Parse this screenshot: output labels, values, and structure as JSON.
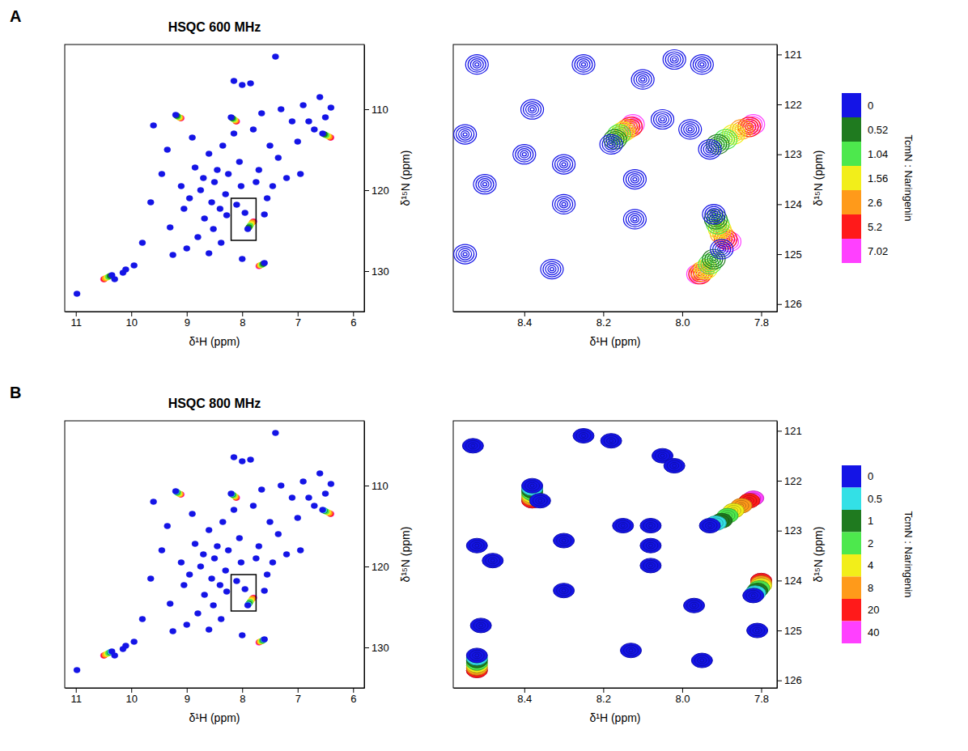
{
  "chart_data": [
    {
      "type": "contour",
      "label": "A",
      "title": "HSQC 600 MHz",
      "x_label": "δ¹H (ppm)",
      "y_label": "δ¹⁵N (ppm)",
      "xlim": [
        11.2,
        5.8
      ],
      "ylim": [
        102,
        135
      ],
      "xticks": [
        11,
        10,
        9,
        8,
        7,
        6
      ],
      "yticks": [
        110,
        120,
        130
      ],
      "marker": "filled",
      "inset": {
        "x": [
          8.2,
          7.75
        ],
        "y": [
          121,
          126.2
        ]
      },
      "series": [
        {
          "name": "0",
          "color": "#1414e6",
          "x": [
            10.98,
            10.35,
            10.3,
            10.15,
            10.1,
            9.95,
            9.8,
            9.6,
            9.45,
            9.35,
            9.3,
            9.25,
            9.2,
            9.1,
            9.05,
            8.95,
            8.9,
            8.85,
            8.8,
            8.75,
            8.7,
            8.68,
            8.6,
            8.55,
            8.52,
            8.5,
            8.45,
            8.4,
            8.38,
            8.35,
            8.3,
            8.28,
            8.25,
            8.2,
            8.15,
            8.1,
            8.05,
            8.02,
            8.0,
            7.95,
            7.9,
            7.85,
            7.8,
            7.75,
            7.7,
            7.65,
            7.6,
            7.55,
            7.5,
            7.45,
            7.4,
            7.35,
            7.3,
            7.2,
            7.1,
            7.0,
            6.95,
            6.9,
            6.8,
            6.7,
            6.6,
            6.55,
            6.5,
            6.4,
            9.0,
            8.0,
            8.6,
            9.65,
            8.15,
            7.6
          ],
          "y": [
            132.8,
            130.5,
            131.0,
            130.2,
            129.8,
            129.3,
            126.5,
            112.0,
            118.0,
            115.0,
            124.6,
            128.0,
            110.7,
            119.5,
            122.3,
            121.0,
            113.5,
            117.2,
            125.8,
            120.0,
            118.5,
            123.5,
            115.5,
            121.5,
            124.8,
            119.0,
            117.5,
            122.3,
            126.5,
            114.5,
            120.5,
            123.1,
            118.0,
            111.0,
            106.5,
            121.8,
            116.5,
            119.5,
            107.0,
            122.8,
            124.8,
            106.8,
            112.5,
            119.0,
            117.5,
            110.5,
            129.0,
            121.0,
            114.5,
            119.5,
            103.5,
            116.0,
            110.0,
            118.5,
            111.5,
            114.0,
            118.0,
            109.5,
            111.5,
            112.5,
            108.5,
            113.0,
            111.0,
            109.8,
            127.2,
            128.5,
            127.8,
            121.5,
            113.0,
            123.0
          ]
        },
        {
          "name": "0.52",
          "color": "#1f7a1f",
          "x": [
            6.52,
            10.38,
            7.88,
            8.18,
            7.62,
            9.18
          ],
          "y": [
            113.1,
            130.6,
            124.6,
            111.1,
            129.1,
            110.8
          ]
        },
        {
          "name": "1.04",
          "color": "#4de84d",
          "x": [
            6.49,
            10.41,
            7.86,
            8.16,
            7.64,
            9.16
          ],
          "y": [
            113.2,
            130.7,
            124.4,
            111.2,
            129.2,
            110.9
          ]
        },
        {
          "name": "1.56",
          "color": "#f2ee1a",
          "x": [
            6.46,
            10.44,
            7.84,
            8.14,
            7.66,
            9.14
          ],
          "y": [
            113.3,
            130.8,
            124.2,
            111.3,
            129.25,
            111.0
          ]
        },
        {
          "name": "2.6",
          "color": "#ff9a1a",
          "x": [
            6.43,
            10.47,
            7.82,
            8.12,
            7.68,
            9.12
          ],
          "y": [
            113.4,
            130.9,
            124.0,
            111.4,
            129.3,
            111.05
          ]
        },
        {
          "name": "5.2",
          "color": "#ff1a1a",
          "x": [
            6.41,
            10.49,
            7.8,
            8.11,
            7.69,
            9.11
          ],
          "y": [
            113.5,
            131.0,
            123.9,
            111.5,
            129.35,
            111.1
          ]
        },
        {
          "name": "7.02",
          "color": "#ff40ff",
          "x": [
            6.4,
            10.5,
            7.79,
            8.1,
            7.7,
            9.1
          ],
          "y": [
            113.5,
            131.0,
            123.85,
            111.5,
            129.4,
            111.1
          ]
        }
      ]
    },
    {
      "type": "contour",
      "x_label": "δ¹H (ppm)",
      "y_label": "δ¹⁵N (ppm)",
      "xlim": [
        8.58,
        7.76
      ],
      "ylim": [
        120.8,
        126.15
      ],
      "xticks": [
        8.4,
        8.2,
        {
          "value": 8,
          "label": "8.0"
        },
        7.8
      ],
      "yticks": [
        121,
        122,
        123,
        124,
        125,
        126
      ],
      "marker": "contour-lines",
      "legend": "right",
      "legend_title": "TcmN : Naringenin",
      "series": [
        {
          "name": "0",
          "color": "#1414e6",
          "x": [
            8.52,
            8.55,
            8.38,
            8.4,
            8.3,
            8.3,
            8.25,
            8.18,
            8.12,
            8.12,
            8.1,
            8.05,
            8.02,
            7.98,
            7.93,
            7.9,
            7.92,
            8.55,
            8.33,
            7.95,
            8.5
          ],
          "y": [
            121.2,
            122.6,
            122.1,
            123.0,
            123.2,
            124.0,
            121.2,
            122.8,
            123.5,
            124.3,
            121.5,
            122.3,
            121.1,
            122.5,
            122.9,
            124.9,
            124.2,
            125.0,
            125.3,
            121.2,
            123.6
          ]
        },
        {
          "name": "0.52",
          "color": "#1f7a1f",
          "x": [
            7.91,
            7.915,
            7.92,
            8.17
          ],
          "y": [
            122.8,
            124.3,
            125.1,
            122.7
          ]
        },
        {
          "name": "1.04",
          "color": "#4de84d",
          "x": [
            7.89,
            7.91,
            7.93,
            8.16
          ],
          "y": [
            122.7,
            124.4,
            125.2,
            122.6
          ]
        },
        {
          "name": "1.56",
          "color": "#f2ee1a",
          "x": [
            7.87,
            7.905,
            7.94,
            8.15
          ],
          "y": [
            122.6,
            124.5,
            125.3,
            122.55
          ]
        },
        {
          "name": "2.6",
          "color": "#ff9a1a",
          "x": [
            7.85,
            7.9,
            7.95,
            8.14
          ],
          "y": [
            122.5,
            124.6,
            125.35,
            122.5
          ]
        },
        {
          "name": "5.2",
          "color": "#ff1a1a",
          "x": [
            7.83,
            7.89,
            7.955,
            8.13
          ],
          "y": [
            122.45,
            124.7,
            125.4,
            122.45
          ]
        },
        {
          "name": "7.02",
          "color": "#ff40ff",
          "x": [
            7.82,
            7.88,
            7.96,
            8.125
          ],
          "y": [
            122.4,
            124.75,
            125.4,
            122.4
          ]
        }
      ]
    },
    {
      "type": "contour",
      "label": "B",
      "title": "HSQC 800 MHz",
      "x_label": "δ¹H (ppm)",
      "y_label": "δ¹⁵N (ppm)",
      "xlim": [
        11.2,
        5.8
      ],
      "ylim": [
        102,
        135
      ],
      "xticks": [
        11,
        10,
        9,
        8,
        7,
        6
      ],
      "yticks": [
        110,
        120,
        130
      ],
      "marker": "filled",
      "inset": {
        "x": [
          8.2,
          7.75
        ],
        "y": [
          121,
          125.5
        ]
      },
      "series": [
        {
          "name": "0",
          "color": "#1414e6",
          "x": [
            10.98,
            10.35,
            10.3,
            10.15,
            10.1,
            9.95,
            9.8,
            9.6,
            9.45,
            9.35,
            9.3,
            9.25,
            9.2,
            9.1,
            9.05,
            8.95,
            8.9,
            8.85,
            8.8,
            8.75,
            8.7,
            8.68,
            8.6,
            8.55,
            8.52,
            8.5,
            8.45,
            8.4,
            8.38,
            8.35,
            8.3,
            8.28,
            8.25,
            8.2,
            8.15,
            8.1,
            8.05,
            8.02,
            8.0,
            7.95,
            7.9,
            7.85,
            7.8,
            7.75,
            7.7,
            7.65,
            7.6,
            7.55,
            7.5,
            7.45,
            7.4,
            7.35,
            7.3,
            7.2,
            7.1,
            7.0,
            6.95,
            6.9,
            6.8,
            6.7,
            6.6,
            6.55,
            6.5,
            6.4,
            9.0,
            8.0,
            8.6,
            9.65,
            8.15,
            7.6
          ],
          "y": [
            132.8,
            130.5,
            131.0,
            130.2,
            129.8,
            129.3,
            126.5,
            112.0,
            118.0,
            115.0,
            124.6,
            128.0,
            110.7,
            119.5,
            122.3,
            121.0,
            113.5,
            117.2,
            125.8,
            120.0,
            118.5,
            123.5,
            115.5,
            121.5,
            124.8,
            119.0,
            117.5,
            122.3,
            126.5,
            114.5,
            120.5,
            123.1,
            118.0,
            111.0,
            106.5,
            121.8,
            116.5,
            119.5,
            107.0,
            122.8,
            124.8,
            106.8,
            112.5,
            119.0,
            117.5,
            110.5,
            129.0,
            121.0,
            114.5,
            119.5,
            103.5,
            116.0,
            110.0,
            118.5,
            111.5,
            114.0,
            118.0,
            109.5,
            111.5,
            112.5,
            108.5,
            113.0,
            111.0,
            109.8,
            127.2,
            128.5,
            127.8,
            121.5,
            113.0,
            123.0
          ]
        },
        {
          "name": "0.5",
          "color": "#33e0e6",
          "x": [
            6.53,
            10.37,
            7.89,
            8.19,
            7.61,
            9.19
          ],
          "y": [
            113.05,
            130.55,
            124.7,
            111.05,
            129.05,
            110.75
          ]
        },
        {
          "name": "1",
          "color": "#1f7a1f",
          "x": [
            6.52,
            10.38,
            7.88,
            8.18,
            7.62,
            9.18
          ],
          "y": [
            113.1,
            130.6,
            124.6,
            111.1,
            129.1,
            110.8
          ]
        },
        {
          "name": "2",
          "color": "#4de84d",
          "x": [
            6.49,
            10.41,
            7.86,
            8.16,
            7.64,
            9.16
          ],
          "y": [
            113.2,
            130.7,
            124.4,
            111.2,
            129.2,
            110.9
          ]
        },
        {
          "name": "4",
          "color": "#f2ee1a",
          "x": [
            6.46,
            10.44,
            7.84,
            8.14,
            7.66,
            9.14
          ],
          "y": [
            113.3,
            130.8,
            124.2,
            111.3,
            129.25,
            111.0
          ]
        },
        {
          "name": "8",
          "color": "#ff9a1a",
          "x": [
            6.43,
            10.47,
            7.82,
            8.12,
            7.68,
            9.12
          ],
          "y": [
            113.4,
            130.9,
            124.0,
            111.4,
            129.3,
            111.05
          ]
        },
        {
          "name": "20",
          "color": "#ff1a1a",
          "x": [
            6.41,
            10.49,
            7.8,
            8.11,
            7.69,
            9.11
          ],
          "y": [
            113.5,
            131.0,
            123.9,
            111.5,
            129.35,
            111.1
          ]
        },
        {
          "name": "40",
          "color": "#ff40ff",
          "x": [
            6.4,
            10.5,
            7.79,
            8.1,
            7.7,
            9.1
          ],
          "y": [
            113.5,
            131.0,
            123.85,
            111.5,
            129.4,
            111.1
          ]
        }
      ]
    },
    {
      "type": "contour",
      "x_label": "δ¹H (ppm)",
      "y_label": "δ¹⁵N (ppm)",
      "xlim": [
        8.58,
        7.76
      ],
      "ylim": [
        120.8,
        126.15
      ],
      "xticks": [
        8.4,
        8.2,
        {
          "value": 8,
          "label": "8.0"
        },
        7.8
      ],
      "yticks": [
        121,
        122,
        123,
        124,
        125,
        126
      ],
      "marker": "filled-contour",
      "legend": "right",
      "legend_title": "TcmN : Naringenin",
      "series": [
        {
          "name": "0",
          "color": "#1414e6",
          "x": [
            8.53,
            8.52,
            8.48,
            8.38,
            8.36,
            8.3,
            8.3,
            8.15,
            8.08,
            8.08,
            8.08,
            8.05,
            8.02,
            7.93,
            7.82,
            7.97,
            8.13,
            7.95,
            8.51,
            8.52,
            7.81,
            8.25,
            8.18
          ],
          "y": [
            121.3,
            123.3,
            123.6,
            122.1,
            122.4,
            123.2,
            124.2,
            122.9,
            122.9,
            123.3,
            123.7,
            121.5,
            121.7,
            122.9,
            124.3,
            124.5,
            125.4,
            125.6,
            124.9,
            125.5,
            125.0,
            121.1,
            121.2
          ]
        },
        {
          "name": "0.5",
          "color": "#33e0e6",
          "x": [
            7.915,
            8.52,
            8.38,
            7.815
          ],
          "y": [
            122.85,
            125.55,
            122.15,
            124.25
          ]
        },
        {
          "name": "1",
          "color": "#1f7a1f",
          "x": [
            7.9,
            8.52,
            8.38,
            7.81
          ],
          "y": [
            122.8,
            125.6,
            122.2,
            124.2
          ]
        },
        {
          "name": "2",
          "color": "#4de84d",
          "x": [
            7.885,
            8.52,
            8.38,
            7.805
          ],
          "y": [
            122.7,
            125.65,
            122.25,
            124.15
          ]
        },
        {
          "name": "4",
          "color": "#f2ee1a",
          "x": [
            7.87,
            8.52,
            8.38,
            7.8
          ],
          "y": [
            122.6,
            125.7,
            122.3,
            124.1
          ]
        },
        {
          "name": "8",
          "color": "#ff9a1a",
          "x": [
            7.85,
            8.52,
            8.38,
            7.8
          ],
          "y": [
            122.5,
            125.75,
            122.35,
            124.05
          ]
        },
        {
          "name": "20",
          "color": "#ff1a1a",
          "x": [
            7.83,
            8.52,
            8.38,
            7.8
          ],
          "y": [
            122.4,
            125.8,
            122.4,
            124.0
          ]
        },
        {
          "name": "40",
          "color": "#ff40ff",
          "x": [
            7.82,
            8.52,
            8.38,
            7.8
          ],
          "y": [
            122.35,
            125.8,
            122.4,
            124.0
          ]
        }
      ]
    }
  ]
}
